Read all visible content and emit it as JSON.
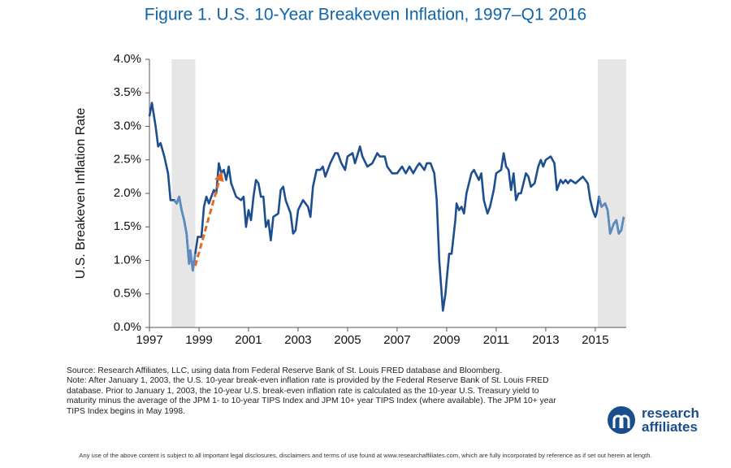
{
  "chart_data": {
    "type": "line",
    "title": "Figure 1.  U.S. 10-Year Breakeven Inflation, 1997–Q1 2016",
    "y_label": "U.S. Breakeven Inflation Rate",
    "source": "Source: Research Affiliates, LLC, using data from Federal Reserve Bank of St. Louis FRED database and Bloomberg.",
    "note": "Note: After January 1, 2003, the U.S. 10-year break-even inflation rate is provided by the Federal Reserve Bank of St. Louis FRED database. Prior to January 1, 2003, the 10-year U.S. break-even inflation rate is calculated as the 10-year U.S. Treasury yield to maturity minus the average of the JPM 1- to 10-year TIPS Index and JPM 10+ year TIPS Index (where available). The JPM 10+ year TIPS Index begins in May 1998.",
    "disclaimer": "Any use of the above content is subject to all important legal disclosures, disclaimers and terms of use found at www.researchaffiliates.com, which are fully incorporated by reference as if set out herein at length.",
    "logo": [
      "research",
      "affiliates"
    ],
    "xlim": [
      1997,
      2016.25
    ],
    "xticks": [
      1997,
      1999,
      2001,
      2003,
      2005,
      2007,
      2009,
      2011,
      2013,
      2015
    ],
    "ylim": [
      0,
      4
    ],
    "yticks": [
      {
        "value": 0,
        "label": "0.0%"
      },
      {
        "value": 0.5,
        "label": "0.5%"
      },
      {
        "value": 1,
        "label": "1.0%"
      },
      {
        "value": 1.5,
        "label": "1.5%"
      },
      {
        "value": 2,
        "label": "2.0%"
      },
      {
        "value": 2.5,
        "label": "2.5%"
      },
      {
        "value": 3,
        "label": "3.0%"
      },
      {
        "value": 3.5,
        "label": "3.5%"
      },
      {
        "value": 4,
        "label": "4.0%"
      }
    ],
    "highlight_ranges": [
      [
        1997.9,
        1998.85
      ],
      [
        2015.1,
        2016.25
      ]
    ],
    "highlight_fill": "#e6e6e6",
    "highlight_line_color": "#5b8bc1",
    "arrow": {
      "x": [
        1998.85,
        1999.9
      ],
      "y": [
        0.92,
        2.3
      ],
      "color": "#e06b26"
    },
    "x": [
      1997.0,
      1997.1,
      1997.25,
      1997.35,
      1997.45,
      1997.6,
      1997.75,
      1997.85,
      1998.0,
      1998.1,
      1998.2,
      1998.3,
      1998.4,
      1998.5,
      1998.6,
      1998.65,
      1998.75,
      1998.85,
      1998.95,
      1999.1,
      1999.2,
      1999.3,
      1999.4,
      1999.5,
      1999.6,
      1999.7,
      1999.8,
      1999.9,
      2000.0,
      2000.1,
      2000.2,
      2000.3,
      2000.5,
      2000.7,
      2000.8,
      2000.9,
      2001.0,
      2001.1,
      2001.2,
      2001.3,
      2001.4,
      2001.5,
      2001.6,
      2001.7,
      2001.8,
      2001.9,
      2002.0,
      2002.2,
      2002.3,
      2002.4,
      2002.5,
      2002.7,
      2002.8,
      2002.9,
      2003.0,
      2003.2,
      2003.4,
      2003.5,
      2003.6,
      2003.75,
      2003.9,
      2004.0,
      2004.1,
      2004.3,
      2004.5,
      2004.6,
      2004.75,
      2004.9,
      2005.0,
      2005.2,
      2005.3,
      2005.5,
      2005.6,
      2005.8,
      2006.0,
      2006.2,
      2006.3,
      2006.5,
      2006.6,
      2006.8,
      2007.0,
      2007.2,
      2007.35,
      2007.5,
      2007.65,
      2007.8,
      2007.9,
      2008.1,
      2008.2,
      2008.35,
      2008.5,
      2008.6,
      2008.7,
      2008.85,
      2008.95,
      2009.0,
      2009.1,
      2009.2,
      2009.35,
      2009.4,
      2009.5,
      2009.6,
      2009.7,
      2009.8,
      2010.0,
      2010.1,
      2010.3,
      2010.4,
      2010.5,
      2010.65,
      2010.75,
      2010.9,
      2011.0,
      2011.2,
      2011.3,
      2011.4,
      2011.5,
      2011.6,
      2011.7,
      2011.8,
      2011.9,
      2012.0,
      2012.2,
      2012.3,
      2012.4,
      2012.55,
      2012.7,
      2012.8,
      2012.9,
      2013.0,
      2013.2,
      2013.35,
      2013.45,
      2013.6,
      2013.7,
      2013.8,
      2013.9,
      2014.0,
      2014.2,
      2014.35,
      2014.5,
      2014.7,
      2014.8,
      2014.9,
      2015.0,
      2015.05,
      2015.15,
      2015.25,
      2015.4,
      2015.5,
      2015.6,
      2015.75,
      2015.85,
      2015.95,
      2016.05,
      2016.15
    ],
    "series": [
      {
        "color": "#1d4f8f",
        "values": [
          3.15,
          3.35,
          3.0,
          2.7,
          2.75,
          2.55,
          2.3,
          1.9,
          1.9,
          1.85,
          1.95,
          1.75,
          1.6,
          1.4,
          0.95,
          1.15,
          0.85,
          1.1,
          1.35,
          1.35,
          1.8,
          1.95,
          1.85,
          1.95,
          2.05,
          2.0,
          2.45,
          2.3,
          2.35,
          2.2,
          2.4,
          2.15,
          1.95,
          1.9,
          1.95,
          1.5,
          1.75,
          1.6,
          1.95,
          2.2,
          2.15,
          1.95,
          1.95,
          1.5,
          1.6,
          1.3,
          1.65,
          1.7,
          2.05,
          2.1,
          1.9,
          1.7,
          1.4,
          1.45,
          1.75,
          1.9,
          1.8,
          1.65,
          2.1,
          2.35,
          2.35,
          2.4,
          2.25,
          2.45,
          2.6,
          2.6,
          2.45,
          2.35,
          2.55,
          2.6,
          2.45,
          2.7,
          2.55,
          2.4,
          2.45,
          2.6,
          2.55,
          2.55,
          2.4,
          2.3,
          2.3,
          2.4,
          2.3,
          2.4,
          2.3,
          2.4,
          2.45,
          2.35,
          2.45,
          2.45,
          2.3,
          1.9,
          1.0,
          0.25,
          0.5,
          0.7,
          1.1,
          1.1,
          1.6,
          1.85,
          1.75,
          1.8,
          1.7,
          2.0,
          2.3,
          2.35,
          2.2,
          2.3,
          1.9,
          1.7,
          1.8,
          2.05,
          2.3,
          2.35,
          2.6,
          2.4,
          2.35,
          2.05,
          2.3,
          1.9,
          2.0,
          2.0,
          2.3,
          2.25,
          2.1,
          2.15,
          2.4,
          2.5,
          2.4,
          2.5,
          2.55,
          2.45,
          2.05,
          2.2,
          2.15,
          2.2,
          2.15,
          2.2,
          2.15,
          2.2,
          2.25,
          2.15,
          1.9,
          1.75,
          1.65,
          1.7,
          1.95,
          1.8,
          1.85,
          1.75,
          1.4,
          1.55,
          1.6,
          1.4,
          1.45,
          1.65
        ]
      }
    ]
  }
}
